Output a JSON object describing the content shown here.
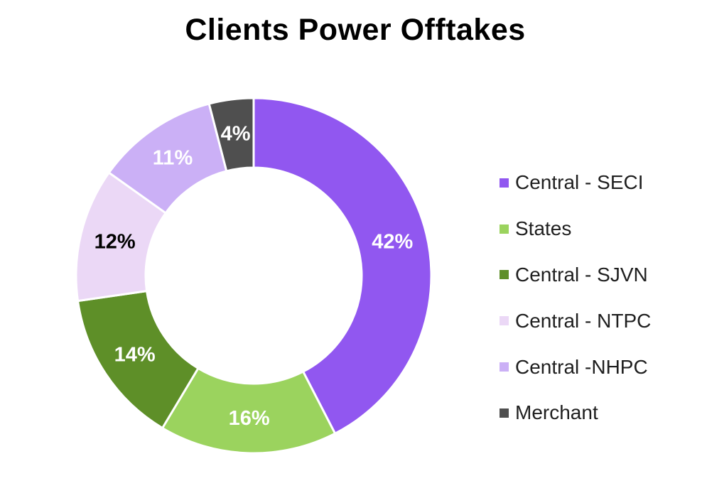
{
  "chart_data": {
    "type": "pie",
    "title": "Clients Power Offtakes",
    "donut": true,
    "legend_position": "right",
    "categories": [
      "Central - SECI",
      "States",
      "Central - SJVN",
      "Central - NTPC",
      "Central -NHPC",
      "Merchant"
    ],
    "values": [
      42,
      16,
      14,
      12,
      11,
      4
    ],
    "labels": [
      "42%",
      "16%",
      "14%",
      "12%",
      "11%",
      "4%"
    ],
    "colors": [
      "#9157F0",
      "#9BD35E",
      "#5E8F28",
      "#EBD8F6",
      "#CBB0F6",
      "#4F4F4F"
    ],
    "label_colors": [
      "#ffffff",
      "#ffffff",
      "#ffffff",
      "#000000",
      "#ffffff",
      "#ffffff"
    ]
  }
}
